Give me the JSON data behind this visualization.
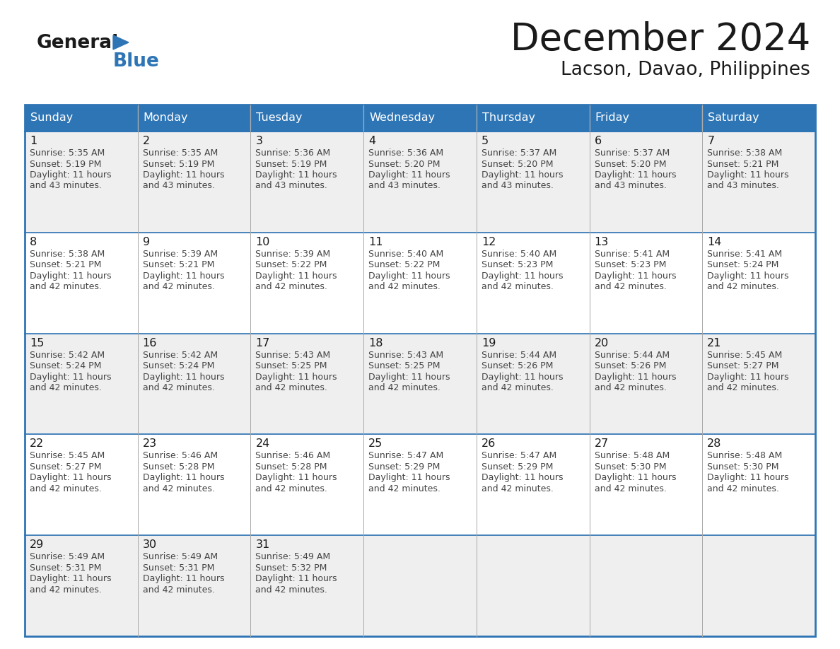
{
  "title": "December 2024",
  "subtitle": "Lacson, Davao, Philippines",
  "days_of_week": [
    "Sunday",
    "Monday",
    "Tuesday",
    "Wednesday",
    "Thursday",
    "Friday",
    "Saturday"
  ],
  "header_bg": "#2E75B6",
  "header_text": "#FFFFFF",
  "cell_bg_odd_row": "#EFEFEF",
  "cell_bg_even_row": "#FFFFFF",
  "cell_text": "#1a1a1a",
  "border_color": "#2E75B6",
  "title_color": "#1a1a1a",
  "subtitle_color": "#1a1a1a",
  "blue_color": "#2E75B6",
  "general_color": "#1a1a1a",
  "info_text_color": "#444444",
  "calendar_data": [
    [
      {
        "day": 1,
        "sunrise": "5:35 AM",
        "sunset": "5:19 PM",
        "daylight_hours": 11,
        "daylight_minutes": 43
      },
      {
        "day": 2,
        "sunrise": "5:35 AM",
        "sunset": "5:19 PM",
        "daylight_hours": 11,
        "daylight_minutes": 43
      },
      {
        "day": 3,
        "sunrise": "5:36 AM",
        "sunset": "5:19 PM",
        "daylight_hours": 11,
        "daylight_minutes": 43
      },
      {
        "day": 4,
        "sunrise": "5:36 AM",
        "sunset": "5:20 PM",
        "daylight_hours": 11,
        "daylight_minutes": 43
      },
      {
        "day": 5,
        "sunrise": "5:37 AM",
        "sunset": "5:20 PM",
        "daylight_hours": 11,
        "daylight_minutes": 43
      },
      {
        "day": 6,
        "sunrise": "5:37 AM",
        "sunset": "5:20 PM",
        "daylight_hours": 11,
        "daylight_minutes": 43
      },
      {
        "day": 7,
        "sunrise": "5:38 AM",
        "sunset": "5:21 PM",
        "daylight_hours": 11,
        "daylight_minutes": 43
      }
    ],
    [
      {
        "day": 8,
        "sunrise": "5:38 AM",
        "sunset": "5:21 PM",
        "daylight_hours": 11,
        "daylight_minutes": 42
      },
      {
        "day": 9,
        "sunrise": "5:39 AM",
        "sunset": "5:21 PM",
        "daylight_hours": 11,
        "daylight_minutes": 42
      },
      {
        "day": 10,
        "sunrise": "5:39 AM",
        "sunset": "5:22 PM",
        "daylight_hours": 11,
        "daylight_minutes": 42
      },
      {
        "day": 11,
        "sunrise": "5:40 AM",
        "sunset": "5:22 PM",
        "daylight_hours": 11,
        "daylight_minutes": 42
      },
      {
        "day": 12,
        "sunrise": "5:40 AM",
        "sunset": "5:23 PM",
        "daylight_hours": 11,
        "daylight_minutes": 42
      },
      {
        "day": 13,
        "sunrise": "5:41 AM",
        "sunset": "5:23 PM",
        "daylight_hours": 11,
        "daylight_minutes": 42
      },
      {
        "day": 14,
        "sunrise": "5:41 AM",
        "sunset": "5:24 PM",
        "daylight_hours": 11,
        "daylight_minutes": 42
      }
    ],
    [
      {
        "day": 15,
        "sunrise": "5:42 AM",
        "sunset": "5:24 PM",
        "daylight_hours": 11,
        "daylight_minutes": 42
      },
      {
        "day": 16,
        "sunrise": "5:42 AM",
        "sunset": "5:24 PM",
        "daylight_hours": 11,
        "daylight_minutes": 42
      },
      {
        "day": 17,
        "sunrise": "5:43 AM",
        "sunset": "5:25 PM",
        "daylight_hours": 11,
        "daylight_minutes": 42
      },
      {
        "day": 18,
        "sunrise": "5:43 AM",
        "sunset": "5:25 PM",
        "daylight_hours": 11,
        "daylight_minutes": 42
      },
      {
        "day": 19,
        "sunrise": "5:44 AM",
        "sunset": "5:26 PM",
        "daylight_hours": 11,
        "daylight_minutes": 42
      },
      {
        "day": 20,
        "sunrise": "5:44 AM",
        "sunset": "5:26 PM",
        "daylight_hours": 11,
        "daylight_minutes": 42
      },
      {
        "day": 21,
        "sunrise": "5:45 AM",
        "sunset": "5:27 PM",
        "daylight_hours": 11,
        "daylight_minutes": 42
      }
    ],
    [
      {
        "day": 22,
        "sunrise": "5:45 AM",
        "sunset": "5:27 PM",
        "daylight_hours": 11,
        "daylight_minutes": 42
      },
      {
        "day": 23,
        "sunrise": "5:46 AM",
        "sunset": "5:28 PM",
        "daylight_hours": 11,
        "daylight_minutes": 42
      },
      {
        "day": 24,
        "sunrise": "5:46 AM",
        "sunset": "5:28 PM",
        "daylight_hours": 11,
        "daylight_minutes": 42
      },
      {
        "day": 25,
        "sunrise": "5:47 AM",
        "sunset": "5:29 PM",
        "daylight_hours": 11,
        "daylight_minutes": 42
      },
      {
        "day": 26,
        "sunrise": "5:47 AM",
        "sunset": "5:29 PM",
        "daylight_hours": 11,
        "daylight_minutes": 42
      },
      {
        "day": 27,
        "sunrise": "5:48 AM",
        "sunset": "5:30 PM",
        "daylight_hours": 11,
        "daylight_minutes": 42
      },
      {
        "day": 28,
        "sunrise": "5:48 AM",
        "sunset": "5:30 PM",
        "daylight_hours": 11,
        "daylight_minutes": 42
      }
    ],
    [
      {
        "day": 29,
        "sunrise": "5:49 AM",
        "sunset": "5:31 PM",
        "daylight_hours": 11,
        "daylight_minutes": 42
      },
      {
        "day": 30,
        "sunrise": "5:49 AM",
        "sunset": "5:31 PM",
        "daylight_hours": 11,
        "daylight_minutes": 42
      },
      {
        "day": 31,
        "sunrise": "5:49 AM",
        "sunset": "5:32 PM",
        "daylight_hours": 11,
        "daylight_minutes": 42
      },
      null,
      null,
      null,
      null
    ]
  ]
}
